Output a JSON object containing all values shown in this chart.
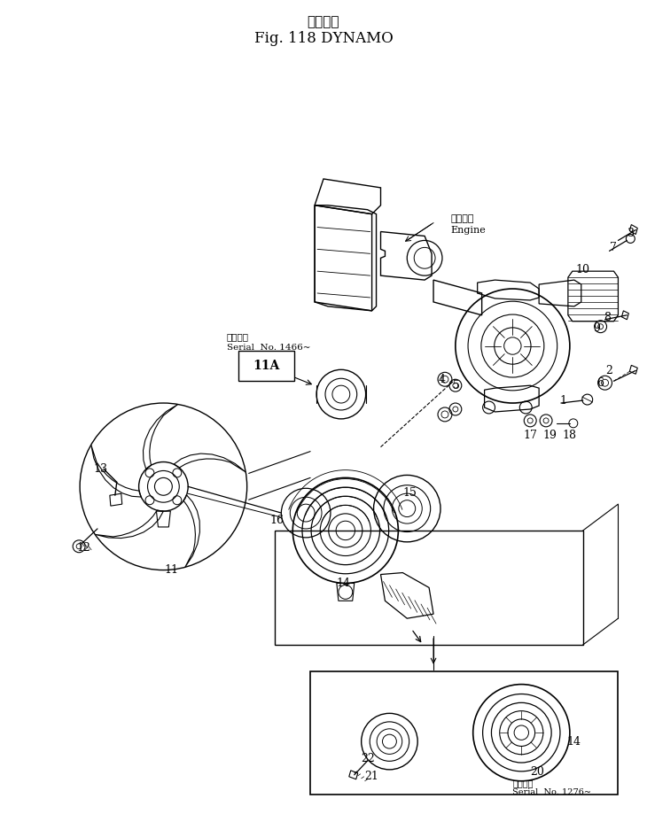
{
  "title_japanese": "ダイナモ",
  "title_main": "Fig. 118 DYNAMO",
  "bg_color": "#ffffff",
  "line_color": "#000000",
  "fig_width": 7.3,
  "fig_height": 9.19,
  "dpi": 100,
  "serial_note_1_jp": "適用号機",
  "serial_note_1_en": "Serial  No. 1466~",
  "serial_note_2_jp": "適用号機",
  "serial_note_2_en": "Serial  No. 1276~",
  "engine_label_jp": "エンジン",
  "engine_label_en": "Engine"
}
